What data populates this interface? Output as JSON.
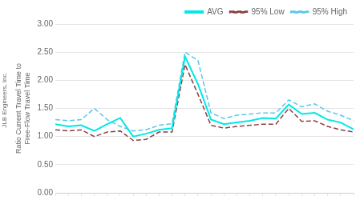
{
  "chart_data": {
    "type": "line",
    "ylabel": "Ratio Current Travel Time to\nFree-Flow Travel Time",
    "annotation": "JLB Engineers, Inc.",
    "x": [
      0,
      1,
      2,
      3,
      4,
      5,
      6,
      7,
      8,
      9,
      10,
      11,
      12,
      13,
      14,
      15,
      16,
      17,
      18,
      19,
      20,
      21,
      22,
      23
    ],
    "series": [
      {
        "name": "AVG",
        "color": "#00e8e8",
        "line_style": "solid",
        "values": [
          1.22,
          1.18,
          1.2,
          1.1,
          1.22,
          1.33,
          1.0,
          1.05,
          1.12,
          1.15,
          2.42,
          1.93,
          1.3,
          1.22,
          1.25,
          1.28,
          1.33,
          1.32,
          1.57,
          1.4,
          1.42,
          1.3,
          1.25,
          1.13
        ]
      },
      {
        "name": "95% Low",
        "color": "#8b4040",
        "line_style": "dashed",
        "values": [
          1.12,
          1.1,
          1.12,
          1.0,
          1.08,
          1.1,
          0.93,
          0.95,
          1.08,
          1.08,
          2.28,
          1.75,
          1.2,
          1.15,
          1.18,
          1.2,
          1.22,
          1.22,
          1.5,
          1.27,
          1.28,
          1.18,
          1.12,
          1.08
        ]
      },
      {
        "name": "95% High",
        "color": "#5bc8e8",
        "line_style": "dashed",
        "values": [
          1.3,
          1.28,
          1.3,
          1.5,
          1.3,
          1.18,
          1.1,
          1.12,
          1.2,
          1.23,
          2.5,
          2.35,
          1.42,
          1.32,
          1.38,
          1.4,
          1.42,
          1.42,
          1.65,
          1.53,
          1.58,
          1.45,
          1.38,
          1.28
        ]
      }
    ],
    "xlim": [
      0,
      23
    ],
    "xticks": [
      0,
      1,
      2,
      3,
      4,
      5,
      6,
      7,
      8,
      9,
      10,
      11,
      12,
      13,
      14,
      15,
      16,
      17,
      18,
      19,
      20,
      21,
      22,
      23
    ],
    "ylim": [
      0.0,
      3.0
    ],
    "yticks": [
      {
        "value": 0.0,
        "label": "0.00"
      },
      {
        "value": 0.5,
        "label": "0.50"
      },
      {
        "value": 1.0,
        "label": "1.00"
      },
      {
        "value": 1.5,
        "label": "1.50"
      },
      {
        "value": 2.0,
        "label": "2.00"
      },
      {
        "value": 2.5,
        "label": "2.50"
      },
      {
        "value": 3.0,
        "label": "3.00"
      }
    ],
    "tick_labels": "y",
    "grid": true,
    "legend": "top-right"
  }
}
